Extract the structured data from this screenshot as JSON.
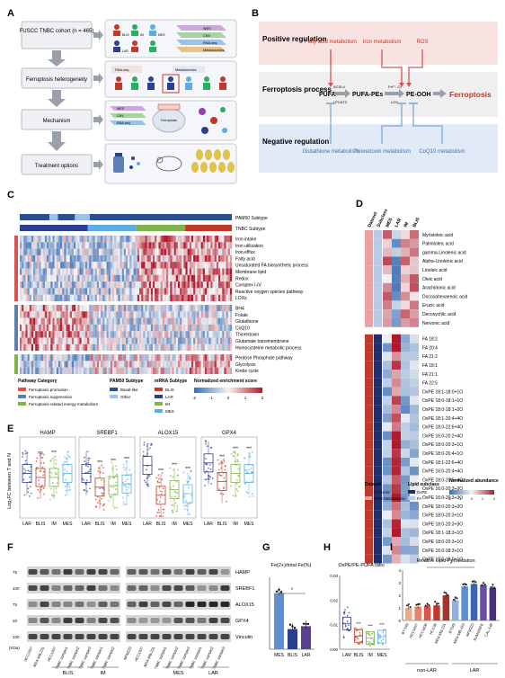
{
  "panelA": {
    "letter": "A",
    "steps": [
      "FUSCC TNBC cohort (n = 465)",
      "Ferroptosis heterogeneity",
      "Mechanism",
      "Treatment options"
    ],
    "subtype_tags": [
      "BLIS",
      "IM",
      "LAR",
      "MES"
    ],
    "omics": [
      "WES",
      "CNV",
      "RNA-seq",
      "Metabolomics"
    ],
    "row2_labels": [
      "RNA-seq",
      "Metabolomics"
    ],
    "row3_labels": [
      "WES",
      "CNV",
      "RNA-seq",
      "Ferroptosis"
    ],
    "colors": {
      "blis": "#c0392b",
      "im": "#27ae60",
      "lar": "#2c3e8f",
      "mes": "#5dade2"
    }
  },
  "panelB": {
    "letter": "B",
    "positive": {
      "label": "Positive regulation",
      "items": [
        "Fatty acid metabolism",
        "Iron metabolism",
        "ROS"
      ]
    },
    "process": {
      "label": "Ferroptosis process",
      "nodes": [
        "PUFA",
        "PUFA-PEs",
        "PE-OOH",
        "Ferroptosis"
      ],
      "enzymes": [
        "ACSL4",
        "LPCAT3",
        "Fe²⁺, O₂",
        "LOX"
      ]
    },
    "negative": {
      "label": "Negative regulation",
      "items": [
        "Glutathione metabolism",
        "Thioredoxin metabolism",
        "CoQ10 metabolism"
      ]
    }
  },
  "panelC": {
    "letter": "C",
    "annot_rows": [
      "PAM50 Subtype",
      "TNBC Subtype"
    ],
    "pathways": [
      "Iron intake",
      "Iron utilization",
      "Iron efflux",
      "Fatty acid",
      "Unsaturated FA biosynthetic process",
      "Membrane lipid",
      "Redox",
      "Complex I-IV",
      "Reactive oxygen species pathway",
      "LOXs",
      "BH4",
      "Folate",
      "Glutathione",
      "CoQ10",
      "Thioredoxin",
      "Glutamate transmembrane",
      "Homocysteine metabolic process",
      "Pentose Phosphate pathway",
      "Glycolysis",
      "Krebs cycle"
    ],
    "legend": {
      "pathway_title": "Pathway Category",
      "pathway_items": [
        "Ferroptosis promotion",
        "Ferroptosis suppression",
        "Ferroptosis-related energy metabolism"
      ],
      "pam50_title": "PAM50 Subtype",
      "pam50_items": [
        "Basal-like",
        "Other"
      ],
      "mrna_title": "mRNA Subtype",
      "mrna_items": [
        "BLIS",
        "LAR",
        "IM",
        "MES"
      ],
      "score_title": "Normalized enrichment score",
      "score_ticks": [
        "-2",
        "-1",
        "0",
        "1",
        "2"
      ]
    }
  },
  "panelD": {
    "letter": "D",
    "col_headers": [
      "Dataset",
      "Subclass",
      "MES",
      "LAR",
      "IM",
      "BLIS"
    ],
    "fa_rows": [
      "Myristoleic acid",
      "Palmitoleic acid",
      "gamma-Linolenic acid",
      "Alpha-Linolenic acid",
      "Linoleic acid",
      "Oleic acid",
      "Arachidonic acid",
      "Docosahexaenoic acid",
      "Erucic acid",
      "Decosychlic acid",
      "Nervonic acid"
    ],
    "pe_rows": [
      "FA 18:2",
      "FA 20:4",
      "FA 21:2",
      "FA 18:1",
      "FA 21:1",
      "FA 22:5",
      "OxPE 18:1-18:0+1O",
      "OxPE 18:0-18:1+1O",
      "OxPE 18:0-18:1+2O",
      "OxPE 18:1-20:4+4O",
      "OxPE 18:0-22:6+4O",
      "OxPE 16:0-20:2+4O",
      "OxPE 18:0-20:3+1O",
      "OxPE 18:0-20:4+1O",
      "OxPE 18:1-22:6+4O",
      "OxPE 16:0-20:4+4O",
      "OxPE 18:0-20:5+4O",
      "OxPE 16:0-20:3+2O",
      "OxPE 16:0-20:3+3O",
      "OxPE 18:0-20:3+2O",
      "OxPE 18:0-20:3+1O",
      "OxPE 18:0-20:3+3O",
      "OxPE 18:1-18:3+1O",
      "OxPE 18:0-20:3+1O",
      "OxPE 16:0-18:3+1O",
      "OxPE 18:0-18:0+1O"
    ],
    "legend": {
      "dataset_title": "Dataset",
      "dataset_items": [
        "Lipidomic",
        "Polar Metabolomic"
      ],
      "subclass_title": "Lipid subclass",
      "subclass_items": [
        "OxPE",
        "FA"
      ],
      "abund_title": "Normalized abundance",
      "abund_ticks": [
        "-2",
        "-1",
        "0",
        "1",
        "2"
      ]
    }
  },
  "panelE": {
    "letter": "E",
    "ylabel": "Log₂FC between T and N",
    "genes": [
      "HAMP",
      "SREBF1",
      "ALOX15",
      "GPX4"
    ],
    "groups": [
      "LAR",
      "BLIS",
      "IM",
      "MES"
    ],
    "sig": [
      [
        "",
        "ns",
        "***",
        ""
      ],
      [
        "",
        "***",
        "***",
        "***"
      ],
      [
        "",
        "***",
        "***",
        "***"
      ],
      [
        "",
        "***",
        "***",
        "***"
      ]
    ]
  },
  "panelF": {
    "letter": "F",
    "bands": [
      "HAMP",
      "SREBF1",
      "ALOX15",
      "GPX4",
      "Vinculin"
    ],
    "mw": [
      "75",
      "100",
      "75",
      "20",
      "100"
    ],
    "mw_unit": "(KDa)",
    "left_lanes": [
      "HCC1937",
      "MDA-MB-231",
      "HCC1937",
      "TNBC sample1",
      "TNBC sample2",
      "TNBC sample3",
      "TNBC sample1",
      "TNBC sample2"
    ],
    "right_lanes": [
      "MFM223",
      "HCC1937",
      "MDA-MB-231",
      "TNBC sample1",
      "TNBC sample2",
      "TNBC sample3",
      "TNBC sample1",
      "TNBC sample2",
      "TNBC sample3"
    ],
    "left_groups": [
      "BLIS",
      "IM"
    ],
    "right_groups": [
      "MES",
      "LAR"
    ]
  },
  "panelG": {
    "letter": "G",
    "title": "Fe(2+)/total Fe(%)",
    "categories": [
      "MES",
      "BLIS",
      "LAR"
    ],
    "sig": "*"
  },
  "panelH": {
    "letter": "H",
    "title": "OxPE/PE-PUFA ratio",
    "y_ticks": [
      "0.03",
      "0.02",
      "0.01",
      "0.00"
    ],
    "categories": [
      "LAR",
      "BLIS",
      "IM",
      "MES"
    ],
    "sig": [
      "",
      "***",
      "***",
      "***"
    ]
  },
  "panelI": {
    "letter": "I",
    "title": "Relative Lipid Peroxidation",
    "y_ticks": [
      "4",
      "3",
      "2",
      "1",
      "0"
    ],
    "categories": [
      "BT-549",
      "HCC1937",
      "HCC1806",
      "HCC38",
      "MDA-MB-231",
      "BT549",
      "MDA-MB-453",
      "MFM223",
      "SUM185PE",
      "CAL-148"
    ],
    "group_labels": [
      "non-LAR",
      "LAR"
    ],
    "sig": "*"
  },
  "chart_data": [
    {
      "type": "bar",
      "panel": "G",
      "title": "Fe(2+)/total Fe(%)",
      "categories": [
        "MES",
        "BLIS",
        "LAR"
      ],
      "values": [
        3.9,
        1.4,
        1.6
      ],
      "ylim": [
        0,
        5
      ]
    },
    {
      "type": "bar",
      "panel": "I",
      "title": "Relative Lipid Peroxidation",
      "categories": [
        "BT-549",
        "HCC1937",
        "HCC1806",
        "HCC38",
        "MDA-MB-231",
        "BT549",
        "MDA-MB-453",
        "MFM223",
        "SUM185PE",
        "CAL-148"
      ],
      "values": [
        1.0,
        1.1,
        1.15,
        1.2,
        2.0,
        1.6,
        2.7,
        2.9,
        2.8,
        2.6
      ],
      "ylim": [
        0,
        4
      ]
    }
  ]
}
